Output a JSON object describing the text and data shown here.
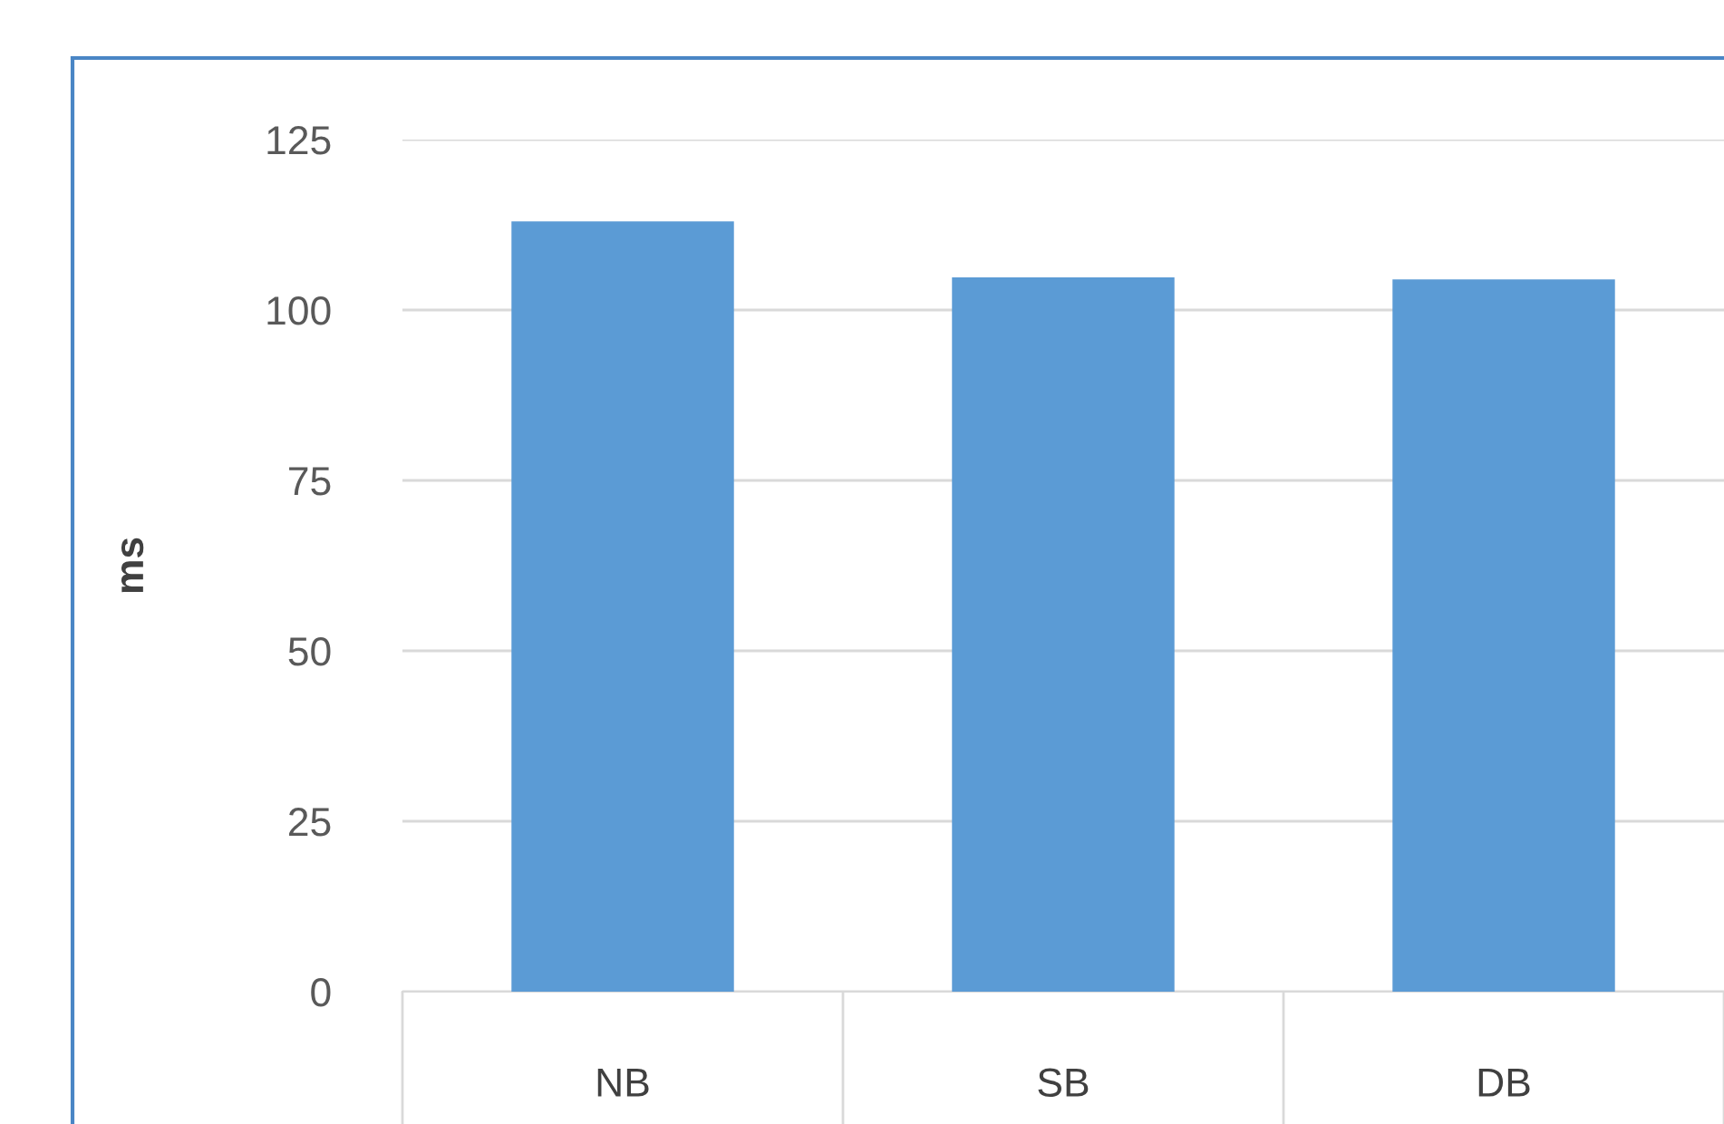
{
  "chart_data": {
    "type": "bar",
    "ylabel": "ms",
    "categories": [
      "NB",
      "SB",
      "DB"
    ],
    "values": [
      113,
      104.8,
      104.5
    ],
    "color": "#5b9bd5",
    "ylim": [
      0,
      125
    ],
    "yticks": [
      0,
      25,
      50,
      75,
      100,
      125
    ],
    "grid": "y"
  }
}
